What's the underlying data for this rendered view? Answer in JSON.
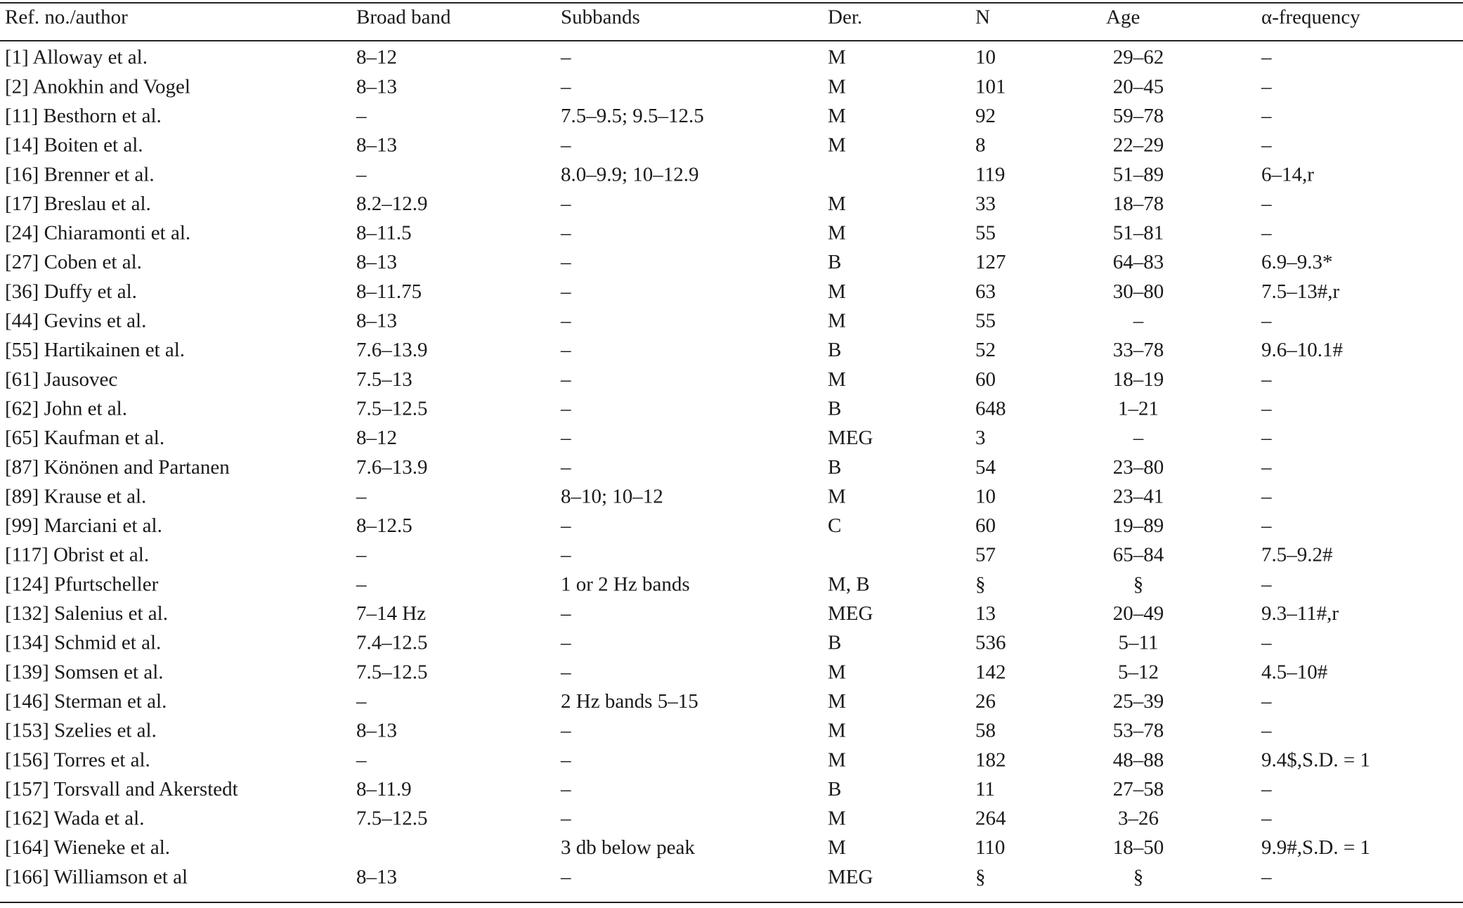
{
  "table": {
    "header": [
      "Ref. no./author",
      "Broad band",
      "Subbands",
      "Der.",
      "N",
      "Age",
      "α-frequency"
    ],
    "rows": [
      [
        "[1] Alloway et al.",
        "8–12",
        "–",
        "M",
        "10",
        "29–62",
        "–"
      ],
      [
        "[2] Anokhin and Vogel",
        "8–13",
        "–",
        "M",
        "101",
        "20–45",
        "–"
      ],
      [
        "[11] Besthorn et al.",
        "–",
        "7.5–9.5; 9.5–12.5",
        "M",
        "92",
        "59–78",
        "–"
      ],
      [
        "[14] Boiten et al.",
        "8–13",
        "–",
        "M",
        "8",
        "22–29",
        "–"
      ],
      [
        "[16] Brenner et al.",
        "–",
        "8.0–9.9; 10–12.9",
        null,
        "119",
        "51–89",
        "6–14,r"
      ],
      [
        "[17] Breslau et al.",
        "8.2–12.9",
        "–",
        "M",
        "33",
        "18–78",
        "–"
      ],
      [
        "[24] Chiaramonti et al.",
        "8–11.5",
        "–",
        "M",
        "55",
        "51–81",
        "–"
      ],
      [
        "[27] Coben et al.",
        "8–13",
        "–",
        "B",
        "127",
        "64–83",
        "6.9–9.3*"
      ],
      [
        "[36] Duffy et al.",
        "8–11.75",
        "–",
        "M",
        "63",
        "30–80",
        "7.5–13#,r"
      ],
      [
        "[44] Gevins et al.",
        "8–13",
        "–",
        "M",
        "55",
        "–",
        "–"
      ],
      [
        "[55] Hartikainen et al.",
        "7.6–13.9",
        "–",
        "B",
        "52",
        "33–78",
        "9.6–10.1#"
      ],
      [
        "[61] Jausovec",
        "7.5–13",
        "–",
        "M",
        "60",
        "18–19",
        "–"
      ],
      [
        "[62] John et al.",
        "7.5–12.5",
        "–",
        "B",
        "648",
        "1–21",
        "–"
      ],
      [
        "[65] Kaufman et al.",
        "8–12",
        "–",
        "MEG",
        "3",
        "–",
        "–"
      ],
      [
        "[87] Könönen and Partanen",
        "7.6–13.9",
        "–",
        "B",
        "54",
        "23–80",
        "–"
      ],
      [
        "[89] Krause et al.",
        "–",
        "8–10; 10–12",
        "M",
        "10",
        "23–41",
        "–"
      ],
      [
        "[99] Marciani et al.",
        "8–12.5",
        "–",
        "C",
        "60",
        "19–89",
        "–"
      ],
      [
        "[117] Obrist et al.",
        "–",
        "–",
        null,
        "57",
        "65–84",
        "7.5–9.2#"
      ],
      [
        "[124] Pfurtscheller",
        "–",
        "1 or 2 Hz bands",
        "M, B",
        "§",
        "§",
        "–"
      ],
      [
        "[132] Salenius et al.",
        "7–14 Hz",
        "–",
        "MEG",
        "13",
        "20–49",
        "9.3–11#,r"
      ],
      [
        "[134] Schmid et al.",
        "7.4–12.5",
        "–",
        "B",
        "536",
        "5–11",
        "–"
      ],
      [
        "[139] Somsen et al.",
        "7.5–12.5",
        "–",
        "M",
        "142",
        "5–12",
        "4.5–10#"
      ],
      [
        "[146] Sterman et al.",
        "–",
        "2 Hz bands 5–15",
        "M",
        "26",
        "25–39",
        "–"
      ],
      [
        "[153] Szelies et al.",
        "8–13",
        "–",
        "M",
        "58",
        "53–78",
        "–"
      ],
      [
        "[156] Torres et al.",
        "–",
        "–",
        "M",
        "182",
        "48–88",
        "9.4$,S.D. = 1"
      ],
      [
        "[157] Torsvall and Akerstedt",
        "8–11.9",
        "–",
        "B",
        "11",
        "27–58",
        "–"
      ],
      [
        "[162] Wada et al.",
        "7.5–12.5",
        "–",
        "M",
        "264",
        "3–26",
        "–"
      ],
      [
        "[164] Wieneke et al.",
        null,
        "3 db below peak",
        "M",
        "110",
        "18–50",
        "9.9#,S.D. = 1"
      ],
      [
        "[166] Williamson et al",
        "8–13",
        "–",
        "MEG",
        "§",
        "§",
        "–"
      ]
    ]
  }
}
